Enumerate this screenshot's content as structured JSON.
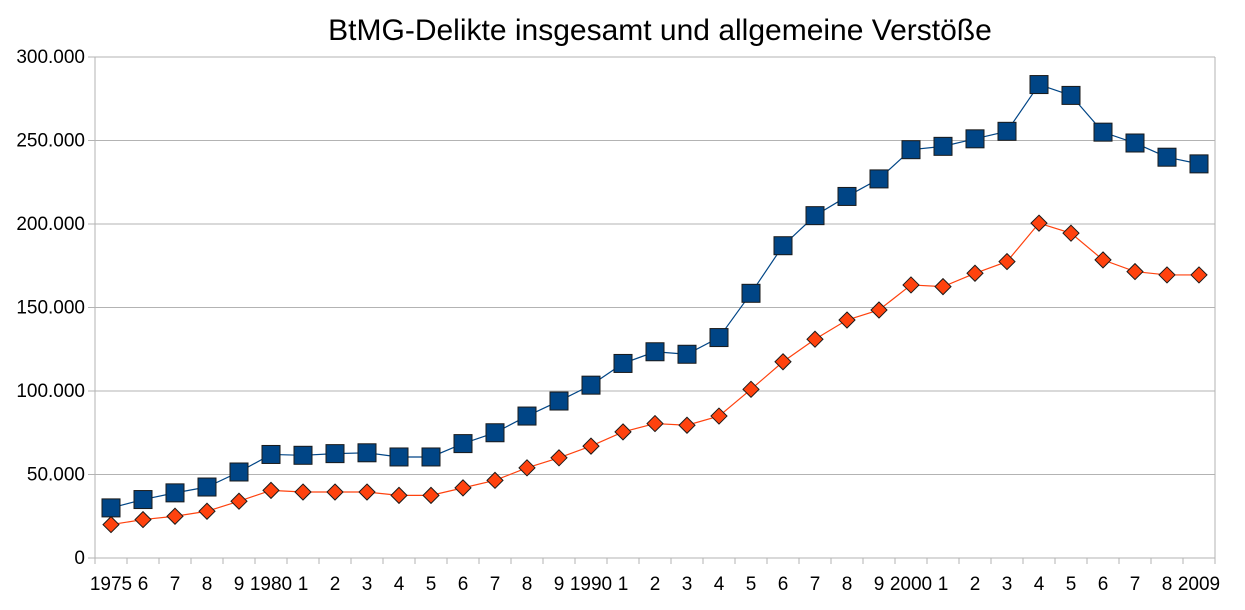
{
  "chart_data": {
    "type": "line",
    "title": "BtMG-Delikte insgesamt und allgemeine Verstöße",
    "x_tick_labels": [
      "1975",
      "6",
      "7",
      "8",
      "9",
      "1980",
      "1",
      "2",
      "3",
      "4",
      "5",
      "6",
      "7",
      "8",
      "9",
      "1990",
      "1",
      "2",
      "3",
      "4",
      "5",
      "6",
      "7",
      "8",
      "9",
      "2000",
      "1",
      "2",
      "3",
      "4",
      "5",
      "6",
      "7",
      "8",
      "2009"
    ],
    "y_tick_labels": [
      "0",
      "50.000",
      "100.000",
      "150.000",
      "200.000",
      "250.000",
      "300.000"
    ],
    "ylim": [
      0,
      300000
    ],
    "y_ticks": [
      0,
      50000,
      100000,
      150000,
      200000,
      250000,
      300000
    ],
    "grid": "horizontal",
    "series": [
      {
        "color": "#004586",
        "marker": "square",
        "values": [
          30000,
          35000,
          39000,
          42500,
          51500,
          62000,
          61500,
          62500,
          63000,
          60500,
          60500,
          68500,
          75000,
          85000,
          94000,
          103500,
          116500,
          123500,
          122000,
          132000,
          158500,
          187000,
          205000,
          216500,
          227000,
          244500,
          246500,
          251000,
          255500,
          283500,
          277000,
          255000,
          248500,
          240000,
          236000
        ]
      },
      {
        "color": "#ff420e",
        "marker": "diamond",
        "values": [
          20000,
          23000,
          25000,
          28000,
          34000,
          40500,
          39500,
          39500,
          39500,
          37500,
          37500,
          42000,
          46500,
          54000,
          60000,
          67000,
          75500,
          80500,
          79500,
          85000,
          101000,
          117500,
          131000,
          142500,
          148500,
          163500,
          162500,
          170500,
          177500,
          200500,
          194500,
          178500,
          171500,
          169500,
          169500
        ]
      }
    ]
  }
}
